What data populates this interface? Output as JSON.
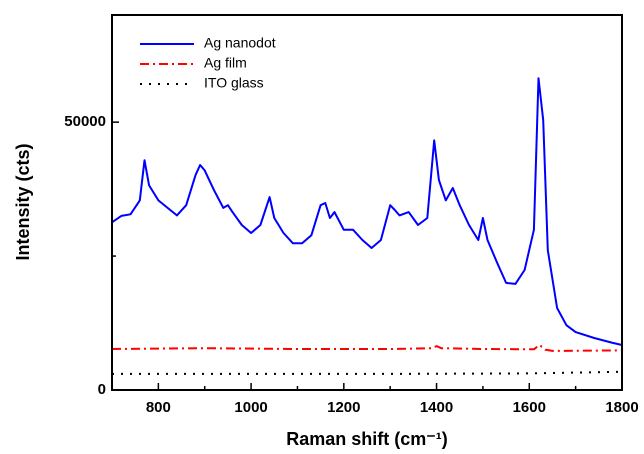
{
  "chart_data": {
    "type": "line",
    "xlabel": "Raman shift (cm⁻¹)",
    "ylabel": "Intensity (cts)",
    "xlim": [
      700,
      1800
    ],
    "ylim": [
      0,
      70000
    ],
    "xticks": [
      800,
      1000,
      1200,
      1400,
      1600,
      1800
    ],
    "xticks_minor": [
      900,
      1100,
      1300,
      1500,
      1700
    ],
    "yticks": [
      0,
      50000
    ],
    "yticks_minor": [
      25000
    ],
    "legend": "upper left",
    "series": [
      {
        "name": "Ag nanodot",
        "color": "#0000ff",
        "style": "solid",
        "x": [
          700,
          720,
          740,
          760,
          770,
          780,
          800,
          820,
          840,
          860,
          880,
          890,
          900,
          920,
          940,
          950,
          960,
          980,
          1000,
          1020,
          1040,
          1050,
          1070,
          1090,
          1110,
          1130,
          1150,
          1160,
          1170,
          1180,
          1200,
          1220,
          1240,
          1260,
          1280,
          1300,
          1310,
          1320,
          1340,
          1360,
          1380,
          1395,
          1405,
          1420,
          1435,
          1450,
          1470,
          1490,
          1500,
          1510,
          1530,
          1550,
          1570,
          1590,
          1610,
          1620,
          1630,
          1640,
          1660,
          1680,
          1700,
          1740,
          1780,
          1800
        ],
        "values": [
          31300,
          32500,
          32800,
          35400,
          42900,
          38200,
          35400,
          34000,
          32600,
          34500,
          40100,
          42000,
          41000,
          37300,
          34000,
          34500,
          33200,
          30800,
          29300,
          30800,
          36000,
          32100,
          29300,
          27400,
          27400,
          28900,
          34500,
          34900,
          32100,
          33200,
          29900,
          29900,
          28000,
          26500,
          28000,
          34500,
          33600,
          32600,
          33200,
          30800,
          32100,
          46600,
          39200,
          35400,
          37700,
          34500,
          30800,
          28000,
          32100,
          28000,
          23900,
          20000,
          19800,
          22400,
          29900,
          58200,
          50400,
          26100,
          15300,
          12100,
          10800,
          9700,
          8800,
          8400
        ]
      },
      {
        "name": "Ag film",
        "color": "#ff0000",
        "style": "dashdot",
        "x": [
          700,
          900,
          1100,
          1300,
          1390,
          1400,
          1410,
          1500,
          1610,
          1622,
          1635,
          1650,
          1800
        ],
        "values": [
          7650,
          7800,
          7650,
          7650,
          7800,
          8200,
          7800,
          7650,
          7600,
          8400,
          7500,
          7300,
          7400
        ]
      },
      {
        "name": "ITO glass",
        "color": "#000000",
        "style": "dotted",
        "x": [
          700,
          1000,
          1300,
          1600,
          1800
        ],
        "values": [
          3000,
          3000,
          3000,
          3100,
          3400
        ]
      }
    ]
  }
}
